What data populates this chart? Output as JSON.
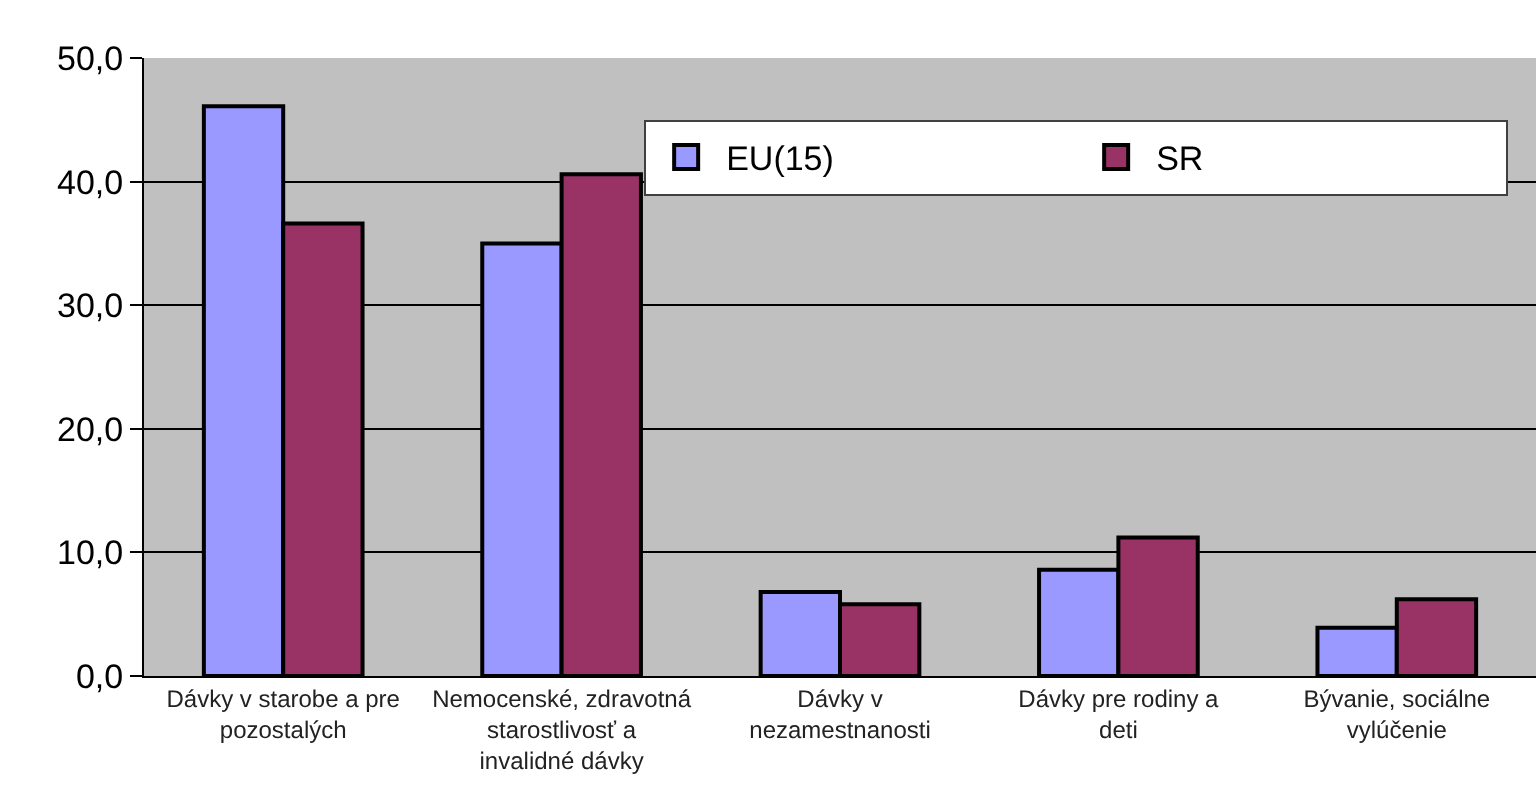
{
  "chart_data": {
    "type": "bar",
    "categories": [
      "Dávky v starobe a pre pozostalých",
      "Nemocenské, zdravotná starostlivosť a invalidné dávky",
      "Dávky v nezamestnanosti",
      "Dávky pre rodiny a deti",
      "Bývanie, sociálne vylúčenie"
    ],
    "series": [
      {
        "name": "EU(15)",
        "color": "#9999ff",
        "values": [
          46.1,
          35.0,
          6.8,
          8.6,
          3.9
        ]
      },
      {
        "name": "SR",
        "color": "#993366",
        "values": [
          36.6,
          40.6,
          5.8,
          11.2,
          6.2
        ]
      }
    ],
    "ylim": [
      0,
      50
    ],
    "yticks": [
      {
        "value": 0,
        "label": "0,0"
      },
      {
        "value": 10,
        "label": "10,0"
      },
      {
        "value": 20,
        "label": "20,0"
      },
      {
        "value": 30,
        "label": "30,0"
      },
      {
        "value": 40,
        "label": "40,0"
      },
      {
        "value": 50,
        "label": "50,0"
      }
    ],
    "grid": "y",
    "legend": "top right"
  }
}
